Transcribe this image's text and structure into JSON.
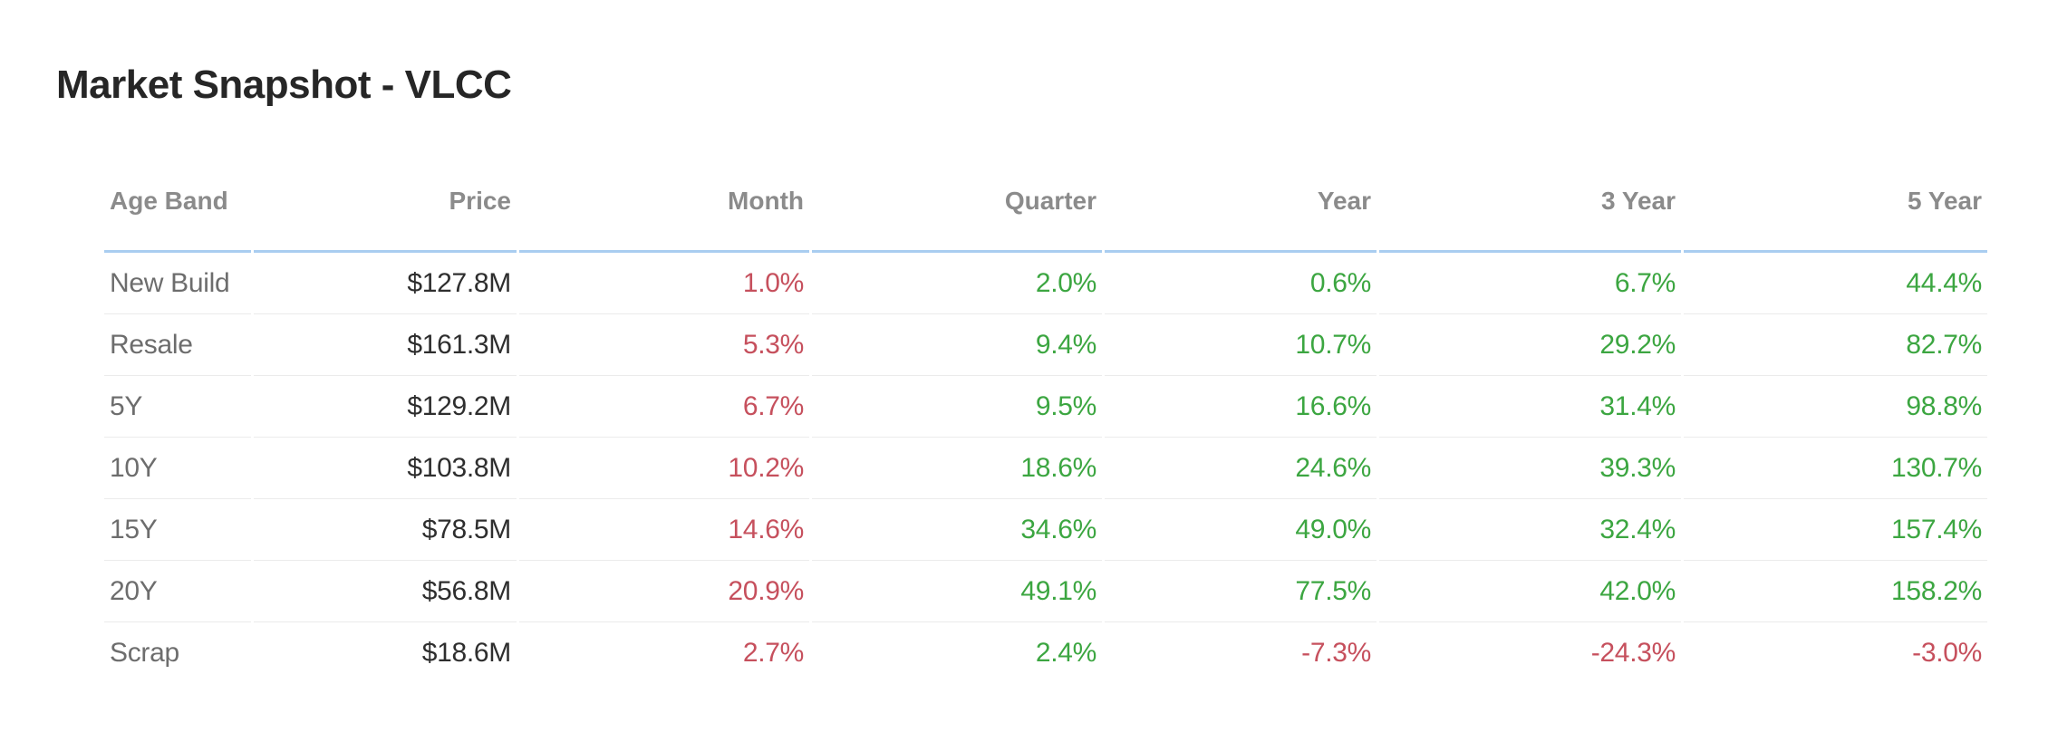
{
  "title": "Market Snapshot - VLCC",
  "colors": {
    "positive": "#3ca641",
    "negative": "#c6505d",
    "header_text": "#8b8b8b",
    "header_underline": "#a9cdf0",
    "row_label": "#6d6d6d",
    "price_text": "#2e2e2e",
    "row_divider": "#ebebeb",
    "title_text": "#262626",
    "background": "#ffffff"
  },
  "table": {
    "columns": [
      {
        "label": "Age Band"
      },
      {
        "label": "Price"
      },
      {
        "label": "Month"
      },
      {
        "label": "Quarter"
      },
      {
        "label": "Year"
      },
      {
        "label": "3 Year"
      },
      {
        "label": "5 Year"
      }
    ],
    "rows": [
      {
        "label": "New Build",
        "price": "$127.8M",
        "cells": [
          {
            "value": "1.0%",
            "tone": "red"
          },
          {
            "value": "2.0%",
            "tone": "green"
          },
          {
            "value": "0.6%",
            "tone": "green"
          },
          {
            "value": "6.7%",
            "tone": "green"
          },
          {
            "value": "44.4%",
            "tone": "green"
          }
        ]
      },
      {
        "label": "Resale",
        "price": "$161.3M",
        "cells": [
          {
            "value": "5.3%",
            "tone": "red"
          },
          {
            "value": "9.4%",
            "tone": "green"
          },
          {
            "value": "10.7%",
            "tone": "green"
          },
          {
            "value": "29.2%",
            "tone": "green"
          },
          {
            "value": "82.7%",
            "tone": "green"
          }
        ]
      },
      {
        "label": "5Y",
        "price": "$129.2M",
        "cells": [
          {
            "value": "6.7%",
            "tone": "red"
          },
          {
            "value": "9.5%",
            "tone": "green"
          },
          {
            "value": "16.6%",
            "tone": "green"
          },
          {
            "value": "31.4%",
            "tone": "green"
          },
          {
            "value": "98.8%",
            "tone": "green"
          }
        ]
      },
      {
        "label": "10Y",
        "price": "$103.8M",
        "cells": [
          {
            "value": "10.2%",
            "tone": "red"
          },
          {
            "value": "18.6%",
            "tone": "green"
          },
          {
            "value": "24.6%",
            "tone": "green"
          },
          {
            "value": "39.3%",
            "tone": "green"
          },
          {
            "value": "130.7%",
            "tone": "green"
          }
        ]
      },
      {
        "label": "15Y",
        "price": "$78.5M",
        "cells": [
          {
            "value": "14.6%",
            "tone": "red"
          },
          {
            "value": "34.6%",
            "tone": "green"
          },
          {
            "value": "49.0%",
            "tone": "green"
          },
          {
            "value": "32.4%",
            "tone": "green"
          },
          {
            "value": "157.4%",
            "tone": "green"
          }
        ]
      },
      {
        "label": "20Y",
        "price": "$56.8M",
        "cells": [
          {
            "value": "20.9%",
            "tone": "red"
          },
          {
            "value": "49.1%",
            "tone": "green"
          },
          {
            "value": "77.5%",
            "tone": "green"
          },
          {
            "value": "42.0%",
            "tone": "green"
          },
          {
            "value": "158.2%",
            "tone": "green"
          }
        ]
      },
      {
        "label": "Scrap",
        "price": "$18.6M",
        "cells": [
          {
            "value": "2.7%",
            "tone": "red"
          },
          {
            "value": "2.4%",
            "tone": "green"
          },
          {
            "value": "-7.3%",
            "tone": "red"
          },
          {
            "value": "-24.3%",
            "tone": "red"
          },
          {
            "value": "-3.0%",
            "tone": "red"
          }
        ]
      }
    ]
  }
}
